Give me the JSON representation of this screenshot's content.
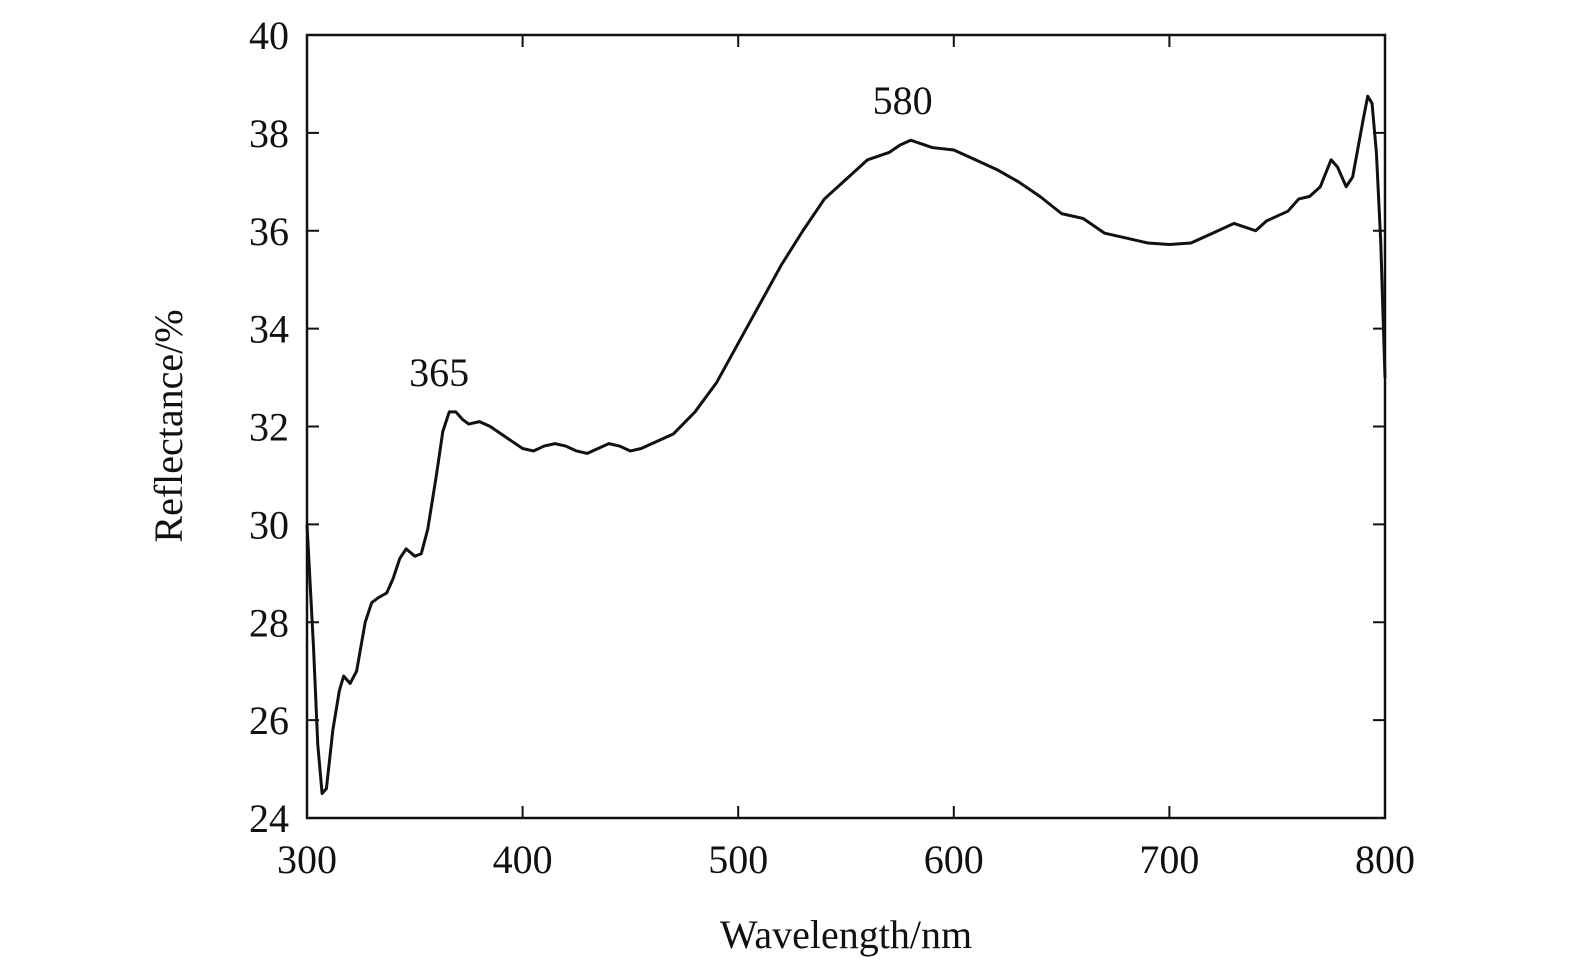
{
  "chart_data": {
    "type": "line",
    "x_label": "Wavelength/nm",
    "y_label": "Reflectance/%",
    "xlim": [
      300,
      800
    ],
    "ylim": [
      24,
      40
    ],
    "xticks": [
      300,
      400,
      500,
      600,
      700,
      800
    ],
    "yticks": [
      24,
      26,
      28,
      30,
      32,
      34,
      36,
      38,
      40
    ],
    "grid": false,
    "annotations": [
      {
        "label": "365",
        "x": 365
      },
      {
        "label": "580",
        "x": 580
      }
    ],
    "x": [
      300,
      303,
      305,
      307,
      309,
      312,
      315,
      317,
      320,
      323,
      327,
      330,
      333,
      337,
      340,
      343,
      346,
      350,
      353,
      356,
      360,
      363,
      366,
      369,
      372,
      375,
      380,
      385,
      390,
      395,
      400,
      405,
      410,
      415,
      420,
      425,
      430,
      435,
      440,
      445,
      450,
      455,
      460,
      470,
      480,
      490,
      500,
      510,
      520,
      530,
      540,
      550,
      560,
      570,
      575,
      580,
      590,
      600,
      610,
      620,
      630,
      640,
      650,
      660,
      670,
      680,
      690,
      700,
      710,
      720,
      730,
      740,
      745,
      750,
      755,
      760,
      765,
      770,
      775,
      778,
      782,
      785,
      790,
      792,
      794,
      796,
      798,
      800
    ],
    "series": [
      {
        "name": "Reflectance",
        "color": "#111111",
        "values": [
          30.0,
          27.5,
          25.5,
          24.5,
          24.6,
          25.8,
          26.6,
          26.9,
          26.75,
          27.0,
          28.0,
          28.4,
          28.5,
          28.6,
          28.9,
          29.3,
          29.5,
          29.35,
          29.4,
          29.9,
          31.0,
          31.9,
          32.3,
          32.3,
          32.15,
          32.05,
          32.1,
          32.0,
          31.85,
          31.7,
          31.55,
          31.5,
          31.6,
          31.65,
          31.6,
          31.5,
          31.45,
          31.55,
          31.65,
          31.6,
          31.5,
          31.55,
          31.65,
          31.85,
          32.3,
          32.9,
          33.7,
          34.5,
          35.3,
          36.0,
          36.65,
          37.05,
          37.45,
          37.6,
          37.75,
          37.85,
          37.7,
          37.65,
          37.45,
          37.25,
          37.0,
          36.7,
          36.35,
          36.25,
          35.95,
          35.85,
          35.75,
          35.72,
          35.75,
          35.95,
          36.15,
          36.0,
          36.2,
          36.3,
          36.4,
          36.65,
          36.7,
          36.9,
          37.45,
          37.3,
          36.9,
          37.1,
          38.3,
          38.75,
          38.6,
          37.6,
          35.8,
          33.0
        ]
      }
    ]
  }
}
